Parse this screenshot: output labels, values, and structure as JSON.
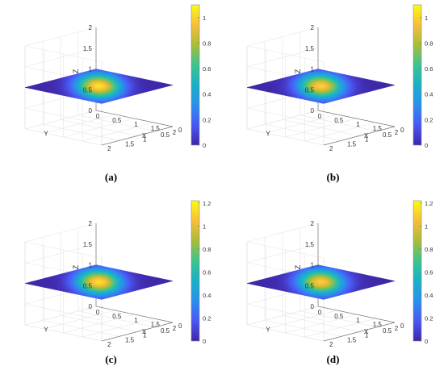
{
  "chart_data": [
    {
      "type": "surface",
      "caption": "(a)",
      "xlabel": "X",
      "ylabel": "Y",
      "zlabel": "Z",
      "xlim": [
        0,
        2
      ],
      "ylim": [
        0,
        2
      ],
      "zlim": [
        0,
        2
      ],
      "xticks": [
        "0",
        "0.5",
        "1",
        "1.5",
        "2"
      ],
      "yticks": [
        "0",
        "0.5",
        "1",
        "1.5",
        "2"
      ],
      "zticks": [
        "0",
        "0.5",
        "1",
        "1.5",
        "2"
      ],
      "colorbar_ticks": [
        "0",
        "0.2",
        "0.4",
        "0.6",
        "0.8",
        "1"
      ],
      "colorbar_max": 1.1,
      "surface_z": 1.0,
      "peak_value": 1.05,
      "grid": true,
      "colormap": [
        "#3e26a8",
        "#4a57f6",
        "#2990ec",
        "#17b1c8",
        "#3cc48f",
        "#a9bd37",
        "#f9bd38",
        "#f9fb15"
      ]
    },
    {
      "type": "surface",
      "caption": "(b)",
      "xlabel": "X",
      "ylabel": "Y",
      "zlabel": "Z",
      "xlim": [
        0,
        2
      ],
      "ylim": [
        0,
        2
      ],
      "zlim": [
        0,
        2
      ],
      "xticks": [
        "0",
        "0.5",
        "1",
        "1.5",
        "2"
      ],
      "yticks": [
        "0",
        "0.5",
        "1",
        "1.5",
        "2"
      ],
      "zticks": [
        "0",
        "0.5",
        "1",
        "1.5",
        "2"
      ],
      "colorbar_ticks": [
        "0",
        "0.2",
        "0.4",
        "0.6",
        "0.8",
        "1"
      ],
      "colorbar_max": 1.1,
      "surface_z": 1.0,
      "peak_value": 1.0,
      "grid": true,
      "colormap": [
        "#3e26a8",
        "#4a57f6",
        "#2990ec",
        "#17b1c8",
        "#3cc48f",
        "#a9bd37",
        "#f9bd38",
        "#f9fb15"
      ]
    },
    {
      "type": "surface",
      "caption": "(c)",
      "xlabel": "X",
      "ylabel": "Y",
      "zlabel": "Z",
      "xlim": [
        0,
        2
      ],
      "ylim": [
        0,
        2
      ],
      "zlim": [
        0,
        2
      ],
      "xticks": [
        "0",
        "0.5",
        "1",
        "1.5",
        "2"
      ],
      "yticks": [
        "0",
        "0.5",
        "1",
        "1.5",
        "2"
      ],
      "zticks": [
        "0",
        "0.5",
        "1",
        "1.5",
        "2"
      ],
      "colorbar_ticks": [
        "0",
        "0.2",
        "0.4",
        "0.6",
        "0.8",
        "1",
        "1.2"
      ],
      "colorbar_max": 1.22,
      "surface_z": 1.0,
      "peak_value": 1.15,
      "grid": true,
      "colormap": [
        "#3e26a8",
        "#4a57f6",
        "#2990ec",
        "#17b1c8",
        "#3cc48f",
        "#a9bd37",
        "#f9bd38",
        "#f9fb15"
      ]
    },
    {
      "type": "surface",
      "caption": "(d)",
      "xlabel": "X",
      "ylabel": "Y",
      "zlabel": "Z",
      "xlim": [
        0,
        2
      ],
      "ylim": [
        0,
        2
      ],
      "zlim": [
        0,
        2
      ],
      "xticks": [
        "0",
        "0.5",
        "1",
        "1.5",
        "2"
      ],
      "yticks": [
        "0",
        "0.5",
        "1",
        "1.5",
        "2"
      ],
      "zticks": [
        "0",
        "0.5",
        "1",
        "1.5",
        "2"
      ],
      "colorbar_ticks": [
        "0",
        "0.2",
        "0.4",
        "0.6",
        "0.8",
        "1",
        "1.2"
      ],
      "colorbar_max": 1.22,
      "surface_z": 1.0,
      "peak_value": 1.1,
      "grid": true,
      "colormap": [
        "#3e26a8",
        "#4a57f6",
        "#2990ec",
        "#17b1c8",
        "#3cc48f",
        "#a9bd37",
        "#f9bd38",
        "#f9fb15"
      ]
    }
  ]
}
